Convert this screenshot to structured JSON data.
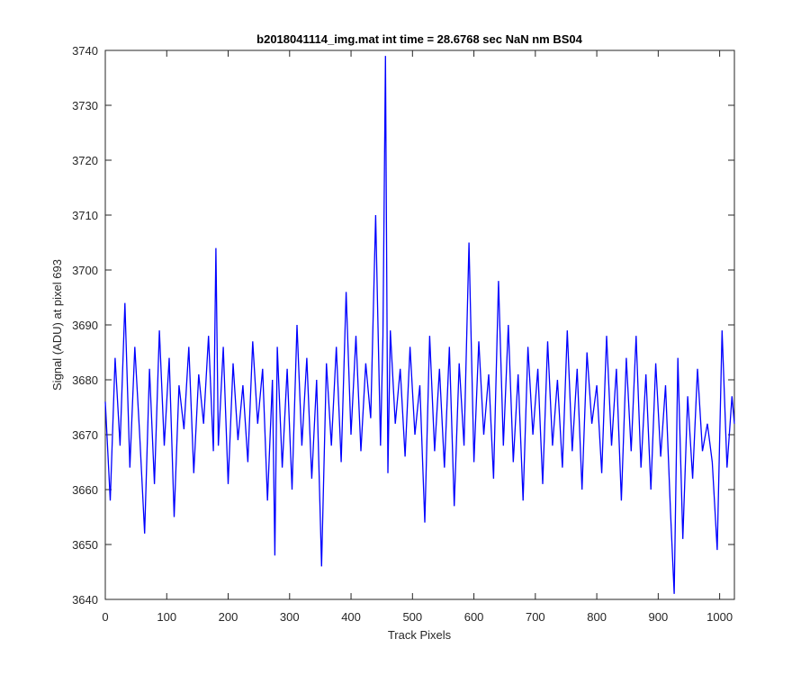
{
  "chart_data": {
    "type": "line",
    "title": "b2018041114_img.mat int time = 28.6768 sec  NaN nm BS04",
    "xlabel": "Track Pixels",
    "ylabel": "Signal (ADU) at pixel 693",
    "xlim": [
      0,
      1024
    ],
    "ylim": [
      3640,
      3740
    ],
    "xticks": [
      0,
      100,
      200,
      300,
      400,
      500,
      600,
      700,
      800,
      900,
      1000
    ],
    "yticks": [
      3640,
      3650,
      3660,
      3670,
      3680,
      3690,
      3700,
      3710,
      3720,
      3730,
      3740
    ],
    "grid": false,
    "legend": "none",
    "series": [
      {
        "color": "#0000ff",
        "x": [
          0,
          8,
          16,
          24,
          32,
          40,
          48,
          56,
          64,
          72,
          80,
          88,
          96,
          104,
          112,
          120,
          128,
          136,
          144,
          152,
          160,
          168,
          176,
          180,
          184,
          192,
          200,
          208,
          216,
          224,
          232,
          240,
          248,
          256,
          264,
          272,
          276,
          280,
          288,
          296,
          304,
          312,
          320,
          328,
          336,
          344,
          352,
          360,
          368,
          376,
          384,
          392,
          400,
          408,
          416,
          424,
          432,
          440,
          448,
          452,
          456,
          460,
          464,
          472,
          480,
          488,
          496,
          504,
          512,
          520,
          528,
          536,
          544,
          552,
          560,
          568,
          576,
          584,
          592,
          600,
          608,
          616,
          624,
          632,
          640,
          648,
          656,
          664,
          672,
          680,
          688,
          696,
          704,
          712,
          720,
          728,
          736,
          744,
          752,
          760,
          768,
          776,
          784,
          792,
          800,
          808,
          816,
          824,
          832,
          840,
          848,
          856,
          864,
          872,
          880,
          888,
          896,
          904,
          912,
          920,
          926,
          932,
          940,
          948,
          956,
          964,
          972,
          980,
          988,
          996,
          1004,
          1012,
          1020,
          1024
        ],
        "values": [
          3676,
          3658,
          3684,
          3668,
          3694,
          3664,
          3686,
          3670,
          3652,
          3682,
          3661,
          3689,
          3668,
          3684,
          3655,
          3679,
          3671,
          3686,
          3663,
          3681,
          3672,
          3688,
          3667,
          3704,
          3668,
          3686,
          3661,
          3683,
          3669,
          3679,
          3665,
          3687,
          3672,
          3682,
          3658,
          3680,
          3648,
          3686,
          3664,
          3682,
          3660,
          3690,
          3668,
          3684,
          3662,
          3680,
          3646,
          3683,
          3668,
          3686,
          3665,
          3696,
          3670,
          3688,
          3667,
          3683,
          3673,
          3710,
          3668,
          3688,
          3739,
          3663,
          3689,
          3672,
          3682,
          3666,
          3686,
          3670,
          3679,
          3654,
          3688,
          3667,
          3682,
          3664,
          3686,
          3657,
          3683,
          3668,
          3705,
          3665,
          3687,
          3670,
          3681,
          3662,
          3698,
          3668,
          3690,
          3665,
          3681,
          3658,
          3686,
          3670,
          3682,
          3661,
          3687,
          3668,
          3680,
          3664,
          3689,
          3667,
          3682,
          3660,
          3685,
          3672,
          3679,
          3663,
          3688,
          3668,
          3682,
          3658,
          3684,
          3667,
          3688,
          3664,
          3681,
          3660,
          3683,
          3666,
          3679,
          3656,
          3641,
          3684,
          3651,
          3677,
          3662,
          3682,
          3667,
          3672,
          3665,
          3649,
          3689,
          3664,
          3677,
          3672
        ]
      }
    ]
  }
}
